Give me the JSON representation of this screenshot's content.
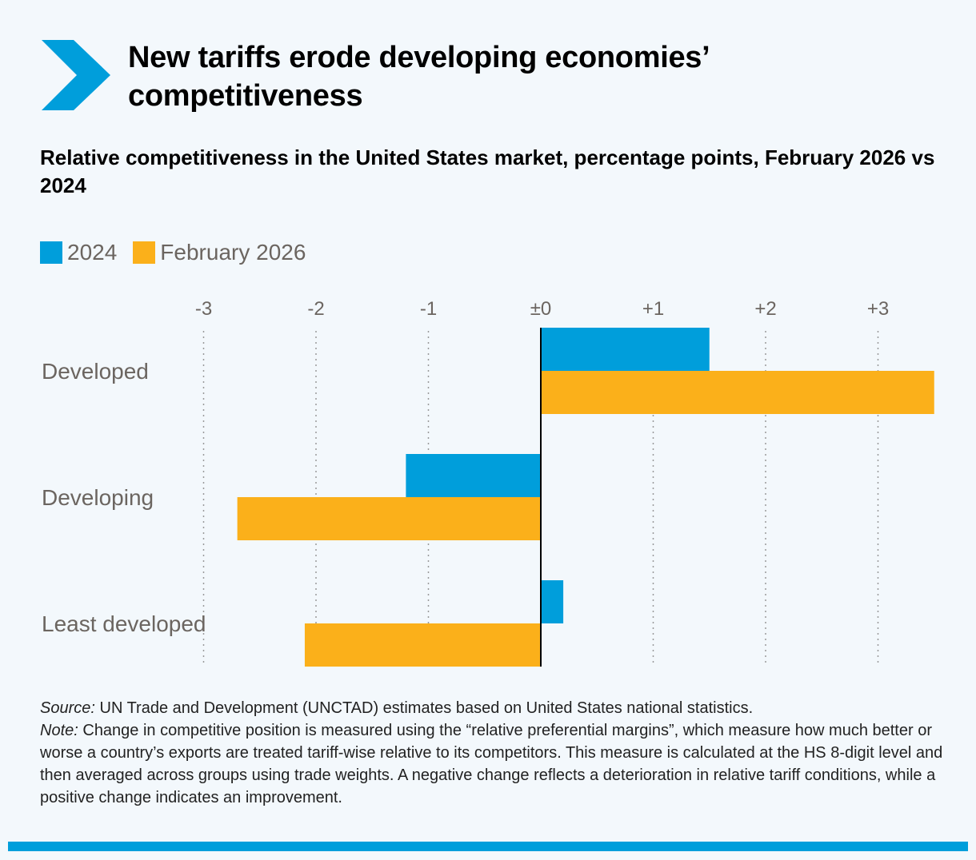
{
  "header": {
    "title": "New tariffs erode developing economies’ competitiveness",
    "subtitle": "Relative competitiveness in the United States market, percentage points, February 2026 vs 2024"
  },
  "chart_data": {
    "type": "bar",
    "orientation": "horizontal",
    "categories": [
      "Developed",
      "Developing",
      "Least developed"
    ],
    "series": [
      {
        "name": "2024",
        "color": "#009edb",
        "values": [
          1.5,
          -1.2,
          0.2
        ]
      },
      {
        "name": "February 2026",
        "color": "#fbb01a",
        "values": [
          3.5,
          -2.7,
          -2.1
        ]
      }
    ],
    "xlim": [
      -3,
      3.5
    ],
    "xticks": [
      -3,
      -2,
      -1,
      0,
      1,
      2,
      3
    ],
    "xtick_labels": [
      "-3",
      "-2",
      "-1",
      "±0",
      "+1",
      "+2",
      "+3"
    ],
    "grid": "vertical dotted",
    "legend": "top-left"
  },
  "notes": {
    "source_label": "Source:",
    "source_text": " UN Trade and Development (UNCTAD) estimates based on United States national statistics.",
    "note_label": "Note:",
    "note_text": " Change in competitive position is measured using the “relative preferential margins”, which measure how much better or worse a country’s exports are treated tariff-wise relative to its competitors. This measure is calculated at the HS 8-digit level and then averaged across groups using trade weights. A negative change reflects a deterioration in relative tariff conditions, while a positive change indicates an improvement."
  }
}
